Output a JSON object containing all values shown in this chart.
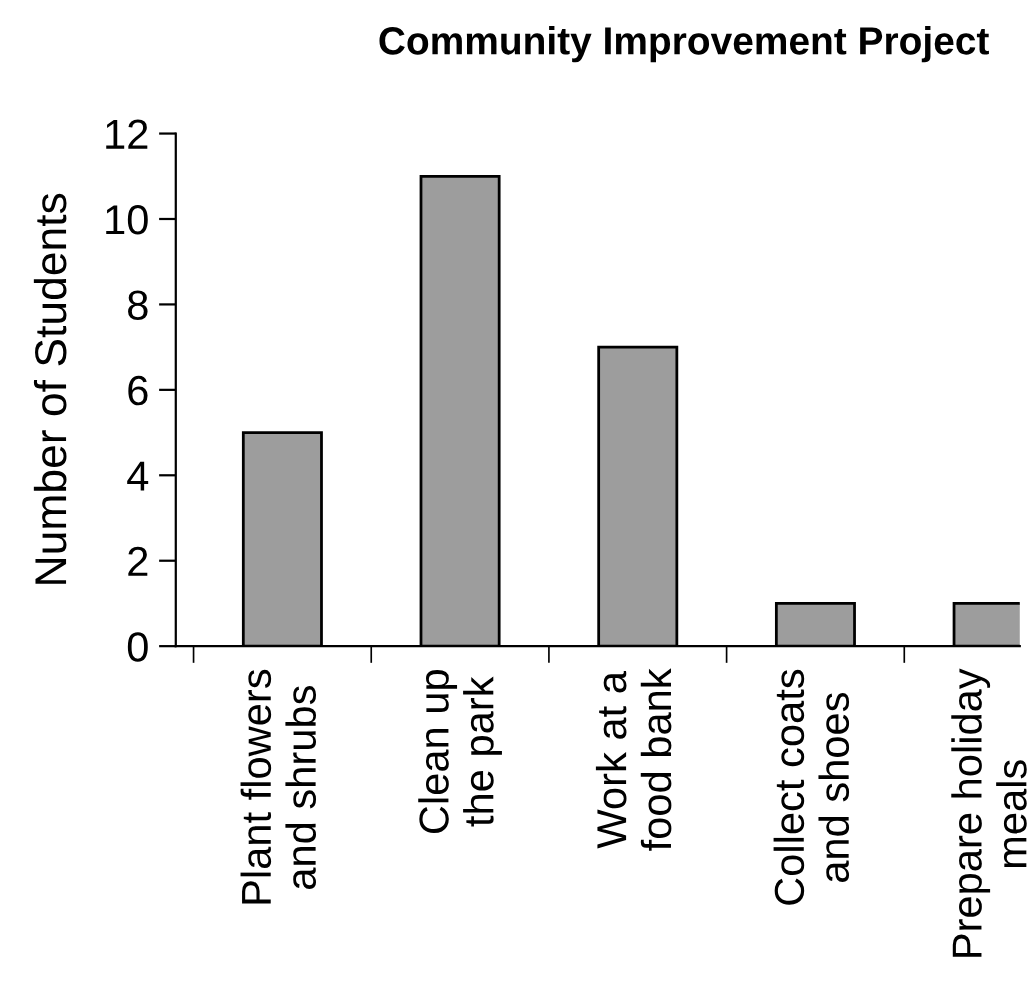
{
  "chart_data": {
    "type": "bar",
    "title": "Community Improvement Project",
    "ylabel": "Number of Students",
    "categories": [
      "Plant flowers\nand shrubs",
      "Clean up\nthe park",
      "Work at a\nfood bank",
      "Collect coats\nand shoes",
      "Prepare holiday\nmeals"
    ],
    "values": [
      5,
      11,
      7,
      1,
      1
    ],
    "color": "#9d9d9d",
    "ylim": [
      0,
      12
    ],
    "yticks": [
      0,
      2,
      4,
      6,
      8,
      10,
      12
    ],
    "grid": false
  }
}
